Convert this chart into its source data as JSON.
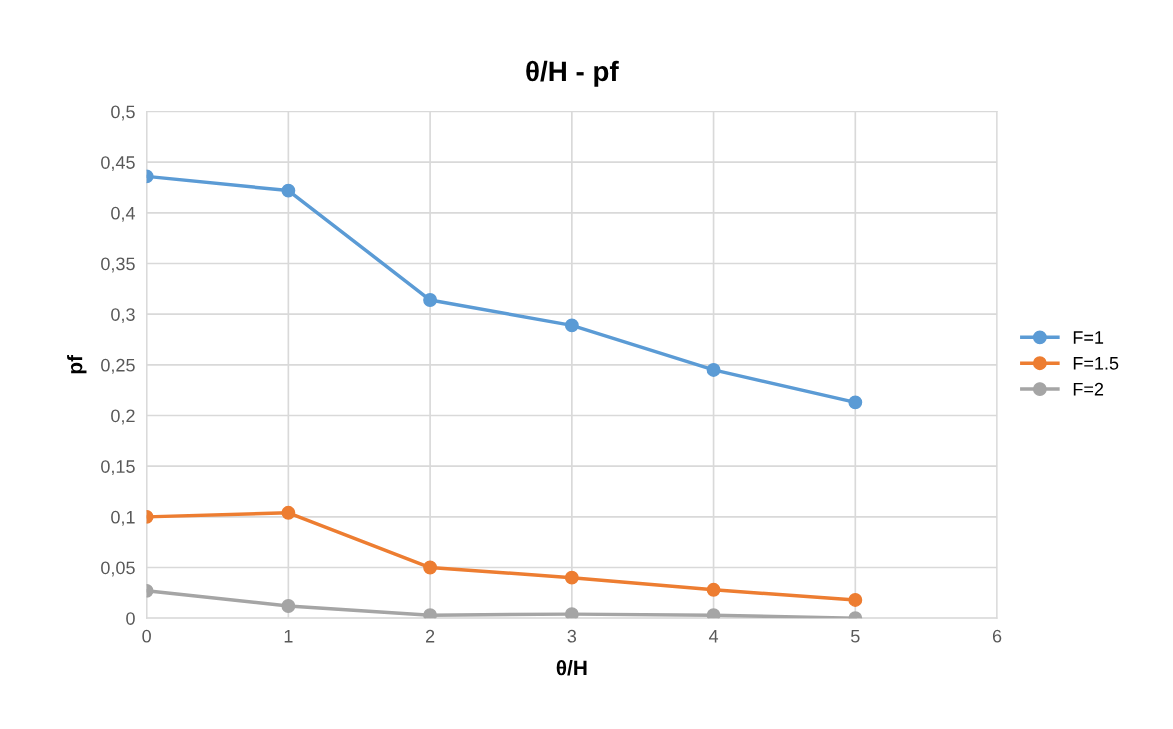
{
  "chart_data": {
    "type": "line",
    "title": "θ/H - pf",
    "xlabel": "θ/H",
    "ylabel": "pf",
    "x": [
      0,
      1,
      2,
      3,
      4,
      5
    ],
    "series": [
      {
        "name": "F=1",
        "color": "#5b9bd5",
        "values": [
          0.436,
          0.422,
          0.314,
          0.289,
          0.245,
          0.213
        ]
      },
      {
        "name": "F=1.5",
        "color": "#ed7d31",
        "values": [
          0.1,
          0.104,
          0.05,
          0.04,
          0.028,
          0.018
        ]
      },
      {
        "name": "F=2",
        "color": "#a5a5a5",
        "values": [
          0.027,
          0.012,
          0.003,
          0.004,
          0.003,
          0.0
        ]
      }
    ],
    "xlim": [
      0,
      6
    ],
    "xticks": [
      0,
      1,
      2,
      3,
      4,
      5,
      6
    ],
    "ylim": [
      0,
      0.5
    ],
    "yticks": [
      0,
      {
        "value": 0.05,
        "label": "0,05"
      },
      {
        "value": 0.1,
        "label": "0,1"
      },
      {
        "value": 0.15,
        "label": "0,15"
      },
      {
        "value": 0.2,
        "label": "0,2"
      },
      {
        "value": 0.25,
        "label": "0,25"
      },
      {
        "value": 0.3,
        "label": "0,3"
      },
      {
        "value": 0.35,
        "label": "0,35"
      },
      {
        "value": 0.4,
        "label": "0,4"
      },
      {
        "value": 0.45,
        "label": "0,45"
      },
      {
        "value": 0.5,
        "label": "0,5"
      }
    ],
    "grid": true,
    "legend": "right",
    "marker": "circle",
    "line_style": "solid"
  }
}
